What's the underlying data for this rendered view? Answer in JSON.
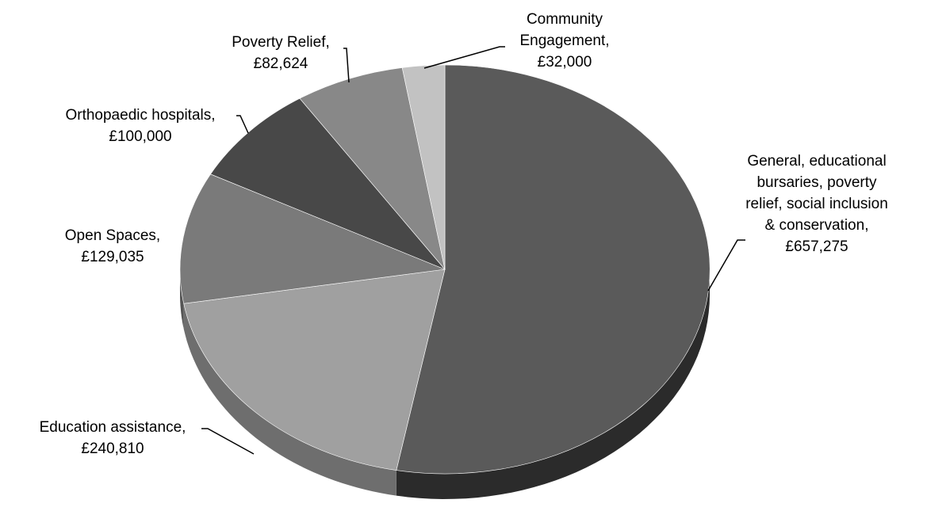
{
  "chart_data": {
    "type": "pie",
    "title": "",
    "categories": [
      "General, educational bursaries, poverty relief, social inclusion & conservation",
      "Education assistance",
      "Open Spaces",
      "Orthopaedic hospitals",
      "Poverty Relief",
      "Community Engagement"
    ],
    "values": [
      657275,
      240810,
      129035,
      100000,
      82624,
      32000
    ],
    "labels": [
      [
        "General, educational",
        "bursaries, poverty",
        "relief, social inclusion",
        "& conservation,",
        "£657,275"
      ],
      [
        "Education assistance,",
        "£240,810"
      ],
      [
        "Open Spaces,",
        "£129,035"
      ],
      [
        "Orthopaedic hospitals,",
        "£100,000"
      ],
      [
        "Poverty Relief,",
        "£82,624"
      ],
      [
        "Community",
        "Engagement,",
        "£32,000"
      ]
    ],
    "colors": [
      "#5a5a5a",
      "#a0a0a0",
      "#7a7a7a",
      "#484848",
      "#888888",
      "#c2c2c2"
    ],
    "side_colors": [
      "#2b2b2b",
      "#6e6e6e",
      "#555555",
      "#333333",
      "#5f5f5f",
      "#8a8a8a"
    ],
    "legend": "none",
    "style": "3d"
  }
}
